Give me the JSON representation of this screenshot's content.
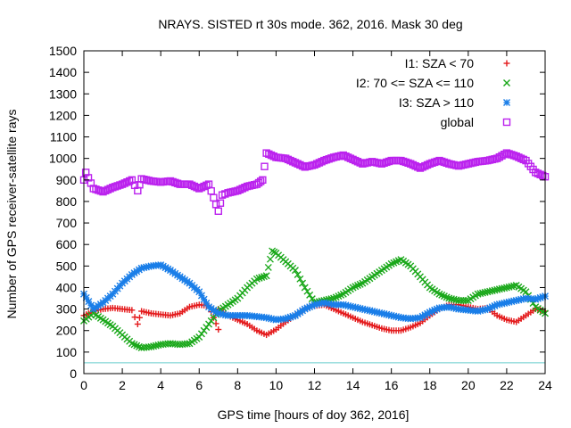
{
  "chart_data": {
    "type": "scatter",
    "title": "NRAYS. SISTED rt 30s mode. 362, 2016. Mask 30 deg",
    "xlabel": "GPS time [hours of doy 362, 2016]",
    "ylabel": "Number of GPS receiver-satellite rays",
    "xlim": [
      0,
      24
    ],
    "ylim": [
      0,
      1500
    ],
    "x_ticks": [
      0,
      2,
      4,
      6,
      8,
      10,
      12,
      14,
      16,
      18,
      20,
      22,
      24
    ],
    "y_ticks": [
      0,
      100,
      200,
      300,
      400,
      500,
      600,
      700,
      800,
      900,
      1000,
      1100,
      1200,
      1300,
      1400,
      1500
    ],
    "grid": false,
    "legend_position": "top-right",
    "reference_line": {
      "y": 50,
      "color": "#66cccc"
    },
    "series": [
      {
        "name": "I1: SZA < 70",
        "color": "#e41a1c",
        "marker": "plus",
        "points": [
          [
            0,
            270
          ],
          [
            0.5,
            290
          ],
          [
            1,
            300
          ],
          [
            1.5,
            305
          ],
          [
            2,
            300
          ],
          [
            2.5,
            295
          ],
          [
            2.8,
            230
          ],
          [
            3,
            290
          ],
          [
            3.5,
            280
          ],
          [
            4,
            275
          ],
          [
            4.5,
            270
          ],
          [
            5,
            280
          ],
          [
            5.5,
            310
          ],
          [
            6,
            320
          ],
          [
            6.5,
            315
          ],
          [
            7,
            205
          ],
          [
            7,
            300
          ],
          [
            7.5,
            270
          ],
          [
            8,
            250
          ],
          [
            8.5,
            230
          ],
          [
            9,
            200
          ],
          [
            9.5,
            180
          ],
          [
            10,
            205
          ],
          [
            10.5,
            240
          ],
          [
            11,
            270
          ],
          [
            11.5,
            300
          ],
          [
            12,
            315
          ],
          [
            12.5,
            320
          ],
          [
            13,
            300
          ],
          [
            13.5,
            280
          ],
          [
            14,
            260
          ],
          [
            14.5,
            240
          ],
          [
            15,
            225
          ],
          [
            15.5,
            210
          ],
          [
            16,
            200
          ],
          [
            16.5,
            200
          ],
          [
            17,
            215
          ],
          [
            17.5,
            235
          ],
          [
            18,
            270
          ],
          [
            18.5,
            300
          ],
          [
            19,
            320
          ],
          [
            19.5,
            320
          ],
          [
            20,
            310
          ],
          [
            20.5,
            300
          ],
          [
            21,
            305
          ],
          [
            21.5,
            270
          ],
          [
            22,
            250
          ],
          [
            22.5,
            240
          ],
          [
            23,
            270
          ],
          [
            23.5,
            300
          ],
          [
            24,
            290
          ]
        ]
      },
      {
        "name": "I2: 70 <= SZA <= 110",
        "color": "#1aa81a",
        "marker": "cross",
        "points": [
          [
            0,
            245
          ],
          [
            0.5,
            280
          ],
          [
            1,
            250
          ],
          [
            1.5,
            220
          ],
          [
            2,
            180
          ],
          [
            2.5,
            140
          ],
          [
            3,
            120
          ],
          [
            3.5,
            125
          ],
          [
            4,
            135
          ],
          [
            4.5,
            140
          ],
          [
            5,
            135
          ],
          [
            5.5,
            140
          ],
          [
            6,
            170
          ],
          [
            6.5,
            230
          ],
          [
            7,
            290
          ],
          [
            7.5,
            320
          ],
          [
            8,
            350
          ],
          [
            8.5,
            400
          ],
          [
            9,
            440
          ],
          [
            9.5,
            455
          ],
          [
            9.8,
            570
          ],
          [
            10,
            560
          ],
          [
            10.5,
            520
          ],
          [
            11,
            480
          ],
          [
            11.5,
            400
          ],
          [
            12,
            330
          ],
          [
            12.5,
            340
          ],
          [
            13,
            350
          ],
          [
            13.5,
            370
          ],
          [
            14,
            400
          ],
          [
            14.5,
            420
          ],
          [
            15,
            450
          ],
          [
            15.5,
            480
          ],
          [
            16,
            510
          ],
          [
            16.5,
            530
          ],
          [
            17,
            500
          ],
          [
            17.5,
            450
          ],
          [
            18,
            400
          ],
          [
            18.5,
            370
          ],
          [
            19,
            350
          ],
          [
            19.5,
            340
          ],
          [
            20,
            340
          ],
          [
            20.5,
            370
          ],
          [
            21,
            380
          ],
          [
            21.5,
            390
          ],
          [
            22,
            400
          ],
          [
            22.5,
            410
          ],
          [
            23,
            380
          ],
          [
            23.5,
            310
          ],
          [
            24,
            280
          ]
        ]
      },
      {
        "name": "I3: SZA > 110",
        "color": "#1a7ee8",
        "marker": "star",
        "points": [
          [
            0,
            370
          ],
          [
            0.5,
            300
          ],
          [
            1,
            330
          ],
          [
            1.5,
            370
          ],
          [
            2,
            420
          ],
          [
            2.5,
            460
          ],
          [
            3,
            490
          ],
          [
            3.5,
            500
          ],
          [
            4,
            505
          ],
          [
            4.5,
            480
          ],
          [
            5,
            450
          ],
          [
            5.5,
            420
          ],
          [
            6,
            380
          ],
          [
            6.5,
            310
          ],
          [
            7,
            280
          ],
          [
            7.5,
            270
          ],
          [
            8,
            270
          ],
          [
            8.5,
            270
          ],
          [
            9,
            265
          ],
          [
            9.5,
            260
          ],
          [
            10,
            250
          ],
          [
            10.5,
            255
          ],
          [
            11,
            270
          ],
          [
            11.5,
            300
          ],
          [
            12,
            320
          ],
          [
            12.5,
            330
          ],
          [
            13,
            320
          ],
          [
            13.5,
            320
          ],
          [
            14,
            310
          ],
          [
            14.5,
            300
          ],
          [
            15,
            290
          ],
          [
            15.5,
            280
          ],
          [
            16,
            270
          ],
          [
            16.5,
            260
          ],
          [
            17,
            255
          ],
          [
            17.5,
            260
          ],
          [
            18,
            285
          ],
          [
            18.5,
            305
          ],
          [
            19,
            310
          ],
          [
            19.5,
            300
          ],
          [
            20,
            295
          ],
          [
            20.5,
            290
          ],
          [
            21,
            300
          ],
          [
            21.5,
            320
          ],
          [
            22,
            330
          ],
          [
            22.5,
            340
          ],
          [
            23,
            350
          ],
          [
            23.5,
            345
          ],
          [
            24,
            360
          ]
        ]
      },
      {
        "name": "global",
        "color": "#bb22ee",
        "marker": "square",
        "points": [
          [
            0,
            900
          ],
          [
            0.1,
            935
          ],
          [
            0.5,
            860
          ],
          [
            1,
            845
          ],
          [
            1.5,
            865
          ],
          [
            2,
            880
          ],
          [
            2.5,
            900
          ],
          [
            2.8,
            850
          ],
          [
            3,
            905
          ],
          [
            3.5,
            895
          ],
          [
            4,
            890
          ],
          [
            4.5,
            895
          ],
          [
            5,
            880
          ],
          [
            5.5,
            880
          ],
          [
            6,
            860
          ],
          [
            6.5,
            880
          ],
          [
            7,
            755
          ],
          [
            7.2,
            830
          ],
          [
            7.5,
            840
          ],
          [
            8,
            850
          ],
          [
            8.5,
            870
          ],
          [
            9,
            880
          ],
          [
            9.3,
            900
          ],
          [
            9.5,
            1025
          ],
          [
            10,
            1005
          ],
          [
            10.5,
            1000
          ],
          [
            11,
            980
          ],
          [
            11.5,
            960
          ],
          [
            12,
            970
          ],
          [
            12.5,
            990
          ],
          [
            13,
            1005
          ],
          [
            13.5,
            1015
          ],
          [
            14,
            995
          ],
          [
            14.5,
            975
          ],
          [
            15,
            985
          ],
          [
            15.5,
            975
          ],
          [
            16,
            990
          ],
          [
            16.5,
            990
          ],
          [
            17,
            975
          ],
          [
            17.5,
            955
          ],
          [
            18,
            975
          ],
          [
            18.5,
            990
          ],
          [
            19,
            975
          ],
          [
            19.5,
            965
          ],
          [
            20,
            975
          ],
          [
            20.5,
            985
          ],
          [
            21,
            990
          ],
          [
            21.5,
            1000
          ],
          [
            22,
            1025
          ],
          [
            22.5,
            1010
          ],
          [
            23,
            990
          ],
          [
            23.5,
            935
          ],
          [
            24,
            915
          ]
        ]
      }
    ]
  }
}
